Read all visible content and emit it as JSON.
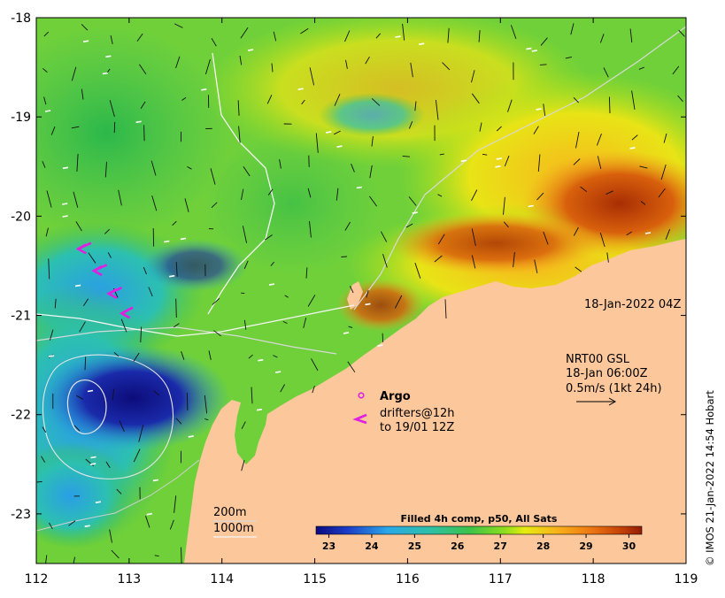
{
  "chart_data": {
    "type": "heatmap",
    "title": "",
    "xlabel": "",
    "ylabel": "",
    "x_ticks": [
      112,
      113,
      114,
      115,
      116,
      117,
      118,
      119
    ],
    "y_ticks": [
      -18,
      -19,
      -20,
      -21,
      -22,
      -23
    ],
    "xlim": [
      112,
      119
    ],
    "ylim": [
      -23.5,
      -18
    ],
    "colorbar": {
      "title": "Filled 4h comp, p50, All Sats",
      "ticks": [
        23,
        24,
        25,
        26,
        27,
        28,
        29,
        30
      ],
      "range": [
        22.7,
        30.3
      ]
    },
    "land_color": "#fcc79b",
    "colors": {
      "cold": "#1a1a9a",
      "cool": "#2aa4e0",
      "mid": "#3fbf55",
      "warm_mid": "#a8e01a",
      "warm": "#f2a21e",
      "hot": "#b03a06"
    },
    "drifters": [
      {
        "lon": 112.45,
        "lat": -20.33,
        "dlon": 0.14,
        "dlat": 0.06
      },
      {
        "lon": 112.62,
        "lat": -20.55,
        "dlon": 0.14,
        "dlat": 0.06
      },
      {
        "lon": 112.78,
        "lat": -20.78,
        "dlon": 0.14,
        "dlat": 0.06
      },
      {
        "lon": 112.92,
        "lat": -20.98,
        "dlon": 0.12,
        "dlat": 0.06
      }
    ]
  },
  "annotations": {
    "timestamp": "18-Jan-2022 04Z",
    "current_source": "NRT00 GSL",
    "current_time": "18-Jan 06:00Z",
    "current_scale": "0.5m/s (1kt 24h)",
    "argo_label": "Argo",
    "drifters_label": "drifters@12h",
    "drifters_to": "to 19/01 12Z",
    "isobath_200": "200m",
    "isobath_1000": "1000m"
  },
  "credit": "© IMOS 21-Jan-2022 14:54 Hobart"
}
